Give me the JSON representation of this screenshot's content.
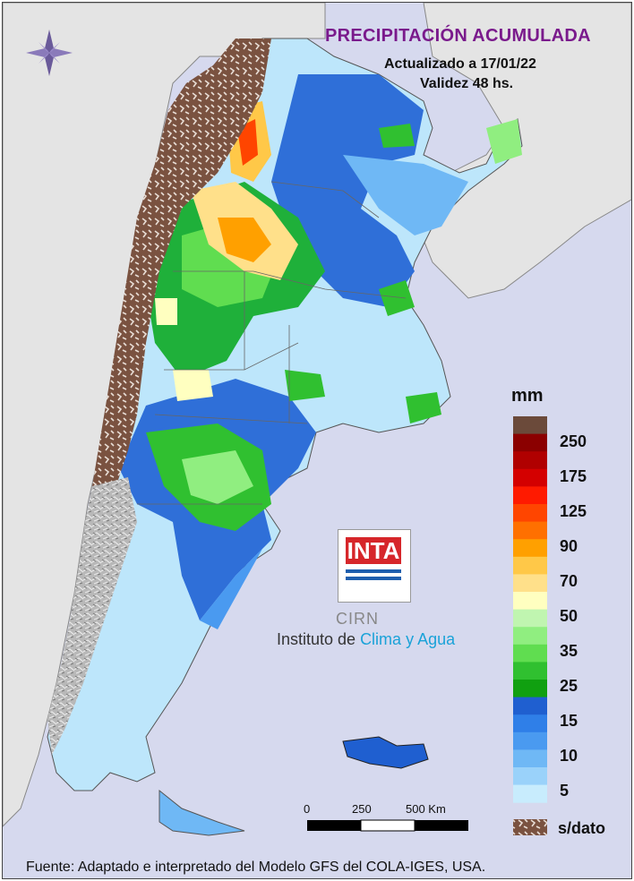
{
  "header": {
    "title": "PRECIPITACIÓN ACUMULADA",
    "updated": "Actualizado a 17/01/22",
    "validity": "Validez 48 hs."
  },
  "legend": {
    "unit": "mm",
    "labels": [
      "250",
      "175",
      "125",
      "90",
      "70",
      "50",
      "35",
      "25",
      "15",
      "10",
      "5"
    ],
    "no_data_label": "s/dato",
    "colors": [
      "#6b4a3a",
      "#8b0000",
      "#b00000",
      "#d40000",
      "#ff1a00",
      "#ff4500",
      "#ff7000",
      "#ffa000",
      "#ffc848",
      "#ffe08a",
      "#ffffc0",
      "#c0f5b0",
      "#90ee80",
      "#60dd50",
      "#30c030",
      "#10a010",
      "#1f5fd0",
      "#2f7fe8",
      "#4a9af0",
      "#6fb8f5",
      "#9ad2fa",
      "#c8ecfd"
    ]
  },
  "scale_bar": {
    "labels": [
      "0",
      "250",
      "500 Km"
    ]
  },
  "logo": {
    "brand": "INTA",
    "cirn": "CIRN",
    "institute_prefix": "Instituto de ",
    "institute_highlight": "Clima y Agua"
  },
  "source": "Fuente: Adaptado e interpretado del Modelo GFS del COLA-IGES, USA."
}
